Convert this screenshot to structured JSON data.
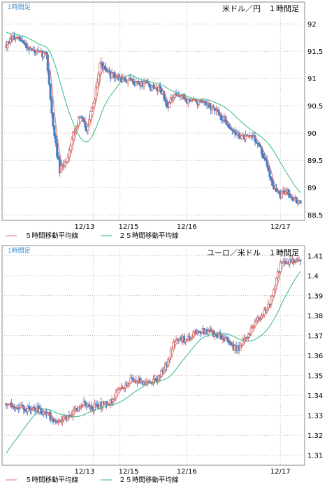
{
  "colors": {
    "up": "#ffffff",
    "up_border": "#d26a6a",
    "down": "#4a7fc4",
    "ma5": "#e07070",
    "ma25": "#35b884",
    "frame": "#888888",
    "grid": "#bdbdbd",
    "corner_text": "#3a8fd0"
  },
  "chart_data": [
    {
      "type": "candlestick",
      "title": "米ドル／円　１時間足",
      "corner_label": "1時間足",
      "ylim": [
        88.4,
        92.4
      ],
      "y_ticks": [
        "92",
        "91.5",
        "91",
        "90.5",
        "90",
        "89.5",
        "89",
        "88.5"
      ],
      "y_tick_values": [
        92,
        91.5,
        91,
        90.5,
        90,
        89.5,
        89,
        88.5
      ],
      "x_tick_labels": [
        "12/13",
        "12/15",
        "12/16",
        "12/17"
      ],
      "x_tick_index": [
        13,
        17,
        27,
        41
      ],
      "legend": [
        "５時間移動平均線",
        "２５時間移動平均線"
      ],
      "grid": "dotted",
      "anchors": [
        [
          0,
          91.6
        ],
        [
          1,
          91.75
        ],
        [
          2,
          91.7
        ],
        [
          3,
          91.6
        ],
        [
          4,
          91.5
        ],
        [
          5,
          91.45
        ],
        [
          6,
          91.45
        ],
        [
          7,
          90.1
        ],
        [
          8,
          89.3
        ],
        [
          9,
          89.5
        ],
        [
          10,
          90.0
        ],
        [
          11,
          90.3
        ],
        [
          12,
          90.1
        ],
        [
          13,
          90.5
        ],
        [
          14,
          91.3
        ],
        [
          15,
          91.1
        ],
        [
          16,
          91.05
        ],
        [
          17,
          91.0
        ],
        [
          18,
          90.95
        ],
        [
          19,
          90.95
        ],
        [
          20,
          90.9
        ],
        [
          21,
          90.9
        ],
        [
          22,
          90.8
        ],
        [
          23,
          90.85
        ],
        [
          24,
          90.5
        ],
        [
          25,
          90.65
        ],
        [
          26,
          90.7
        ],
        [
          27,
          90.6
        ],
        [
          28,
          90.6
        ],
        [
          29,
          90.55
        ],
        [
          30,
          90.5
        ],
        [
          31,
          90.45
        ],
        [
          32,
          90.3
        ],
        [
          33,
          90.2
        ],
        [
          34,
          90.0
        ],
        [
          35,
          89.95
        ],
        [
          36,
          89.9
        ],
        [
          37,
          89.95
        ],
        [
          38,
          89.7
        ],
        [
          39,
          89.4
        ],
        [
          40,
          89.0
        ],
        [
          41,
          88.85
        ],
        [
          42,
          88.95
        ],
        [
          43,
          88.8
        ],
        [
          44,
          88.7
        ]
      ],
      "ma25_start": 91.85
    },
    {
      "type": "candlestick",
      "title": "ユーロ／米ドル　１時間足",
      "corner_label": "1時間足",
      "ylim": [
        1.305,
        1.415
      ],
      "y_ticks": [
        "1.41",
        "1.4",
        "1.39",
        "1.38",
        "1.37",
        "1.36",
        "1.35",
        "1.34",
        "1.33",
        "1.32",
        "1.31"
      ],
      "y_tick_values": [
        1.41,
        1.4,
        1.39,
        1.38,
        1.37,
        1.36,
        1.35,
        1.34,
        1.33,
        1.32,
        1.31
      ],
      "x_tick_labels": [
        "12/13",
        "12/15",
        "12/16",
        "12/17"
      ],
      "x_tick_index": [
        13,
        17,
        27,
        41
      ],
      "legend": [
        "５時間移動平均線",
        "２５時間移動平均線"
      ],
      "grid": "dotted",
      "anchors": [
        [
          0,
          1.336
        ],
        [
          1,
          1.335
        ],
        [
          2,
          1.334
        ],
        [
          3,
          1.333
        ],
        [
          4,
          1.334
        ],
        [
          5,
          1.333
        ],
        [
          6,
          1.331
        ],
        [
          7,
          1.328
        ],
        [
          8,
          1.327
        ],
        [
          9,
          1.329
        ],
        [
          10,
          1.331
        ],
        [
          11,
          1.335
        ],
        [
          12,
          1.336
        ],
        [
          13,
          1.334
        ],
        [
          14,
          1.335
        ],
        [
          15,
          1.336
        ],
        [
          16,
          1.338
        ],
        [
          17,
          1.343
        ],
        [
          18,
          1.346
        ],
        [
          19,
          1.348
        ],
        [
          20,
          1.347
        ],
        [
          21,
          1.346
        ],
        [
          22,
          1.347
        ],
        [
          23,
          1.35
        ],
        [
          24,
          1.356
        ],
        [
          25,
          1.365
        ],
        [
          26,
          1.368
        ],
        [
          27,
          1.368
        ],
        [
          28,
          1.371
        ],
        [
          29,
          1.372
        ],
        [
          30,
          1.372
        ],
        [
          31,
          1.371
        ],
        [
          32,
          1.37
        ],
        [
          33,
          1.368
        ],
        [
          34,
          1.364
        ],
        [
          35,
          1.364
        ],
        [
          36,
          1.37
        ],
        [
          37,
          1.375
        ],
        [
          38,
          1.38
        ],
        [
          39,
          1.383
        ],
        [
          40,
          1.392
        ],
        [
          41,
          1.406
        ],
        [
          42,
          1.407
        ],
        [
          43,
          1.407
        ],
        [
          44,
          1.408
        ]
      ],
      "ma25_start": 1.311
    }
  ]
}
